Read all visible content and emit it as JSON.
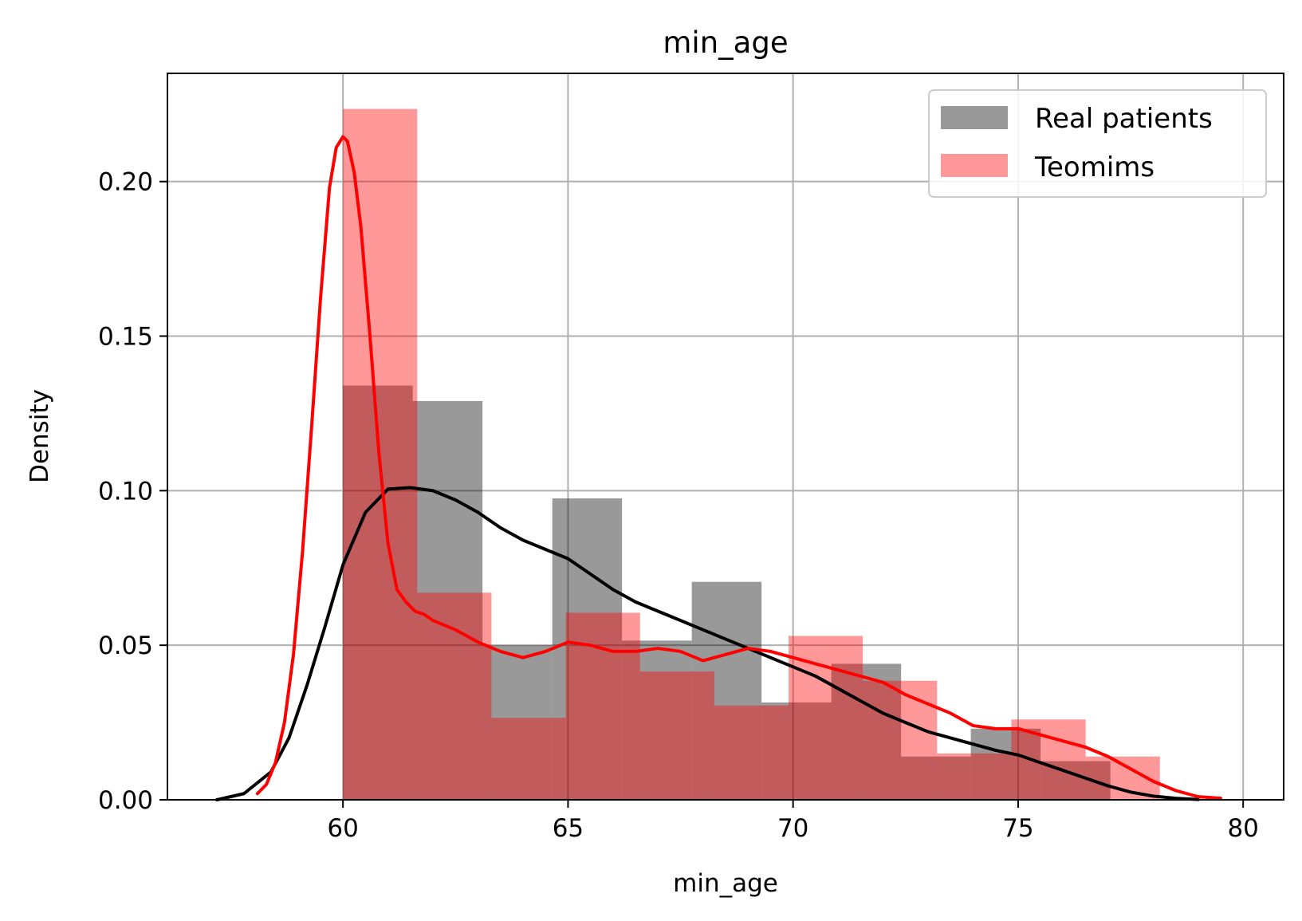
{
  "chart_data": {
    "type": "histogram",
    "title": "min_age",
    "xlabel": "min_age",
    "ylabel": "Density",
    "xlim": [
      56.1,
      80.9
    ],
    "ylim": [
      0,
      0.235
    ],
    "xticks": [
      60,
      65,
      70,
      75,
      80
    ],
    "yticks": [
      0.0,
      0.05,
      0.1,
      0.15,
      0.2
    ],
    "xtick_labels": [
      "60",
      "65",
      "70",
      "75",
      "80"
    ],
    "ytick_labels": [
      "0.00",
      "0.05",
      "0.10",
      "0.15",
      "0.20"
    ],
    "grid": true,
    "legend_position": "top-right",
    "series": [
      {
        "name": "Real patients",
        "color": "#000000",
        "bar_opacity": 0.4,
        "bins": [
          {
            "x0": 60.0,
            "x1": 61.55,
            "density": 0.134
          },
          {
            "x0": 61.55,
            "x1": 63.1,
            "density": 0.129
          },
          {
            "x0": 63.1,
            "x1": 64.65,
            "density": 0.05
          },
          {
            "x0": 64.65,
            "x1": 66.2,
            "density": 0.0975
          },
          {
            "x0": 66.2,
            "x1": 67.75,
            "density": 0.0515
          },
          {
            "x0": 67.75,
            "x1": 69.3,
            "density": 0.0705
          },
          {
            "x0": 69.3,
            "x1": 70.85,
            "density": 0.0315
          },
          {
            "x0": 70.85,
            "x1": 72.4,
            "density": 0.044
          },
          {
            "x0": 72.4,
            "x1": 73.95,
            "density": 0.014
          },
          {
            "x0": 73.95,
            "x1": 75.5,
            "density": 0.023
          },
          {
            "x0": 75.5,
            "x1": 77.05,
            "density": 0.0125
          }
        ],
        "kde": {
          "x": [
            57.2,
            57.8,
            58.4,
            58.8,
            59.2,
            59.6,
            60.0,
            60.5,
            61.0,
            61.5,
            62.0,
            62.5,
            63.0,
            63.5,
            64.0,
            64.5,
            65.0,
            65.5,
            66.0,
            66.5,
            67.0,
            67.5,
            68.0,
            68.5,
            69.0,
            69.5,
            70.0,
            70.5,
            71.0,
            71.5,
            72.0,
            72.5,
            73.0,
            73.5,
            74.0,
            74.5,
            75.0,
            75.5,
            76.0,
            76.5,
            77.0,
            77.5,
            78.0,
            78.5,
            79.0
          ],
          "y": [
            0.0,
            0.002,
            0.009,
            0.02,
            0.037,
            0.056,
            0.076,
            0.093,
            0.1005,
            0.101,
            0.1,
            0.097,
            0.093,
            0.088,
            0.084,
            0.081,
            0.078,
            0.073,
            0.068,
            0.064,
            0.061,
            0.058,
            0.055,
            0.052,
            0.049,
            0.046,
            0.043,
            0.04,
            0.036,
            0.032,
            0.028,
            0.025,
            0.022,
            0.02,
            0.018,
            0.016,
            0.0145,
            0.012,
            0.0095,
            0.007,
            0.0045,
            0.0025,
            0.0012,
            0.0005,
            0.0001
          ]
        }
      },
      {
        "name": "Teomims",
        "color": "#ff0000",
        "bar_opacity": 0.4,
        "bins": [
          {
            "x0": 60.0,
            "x1": 61.65,
            "density": 0.2235
          },
          {
            "x0": 61.65,
            "x1": 63.3,
            "density": 0.067
          },
          {
            "x0": 63.3,
            "x1": 64.95,
            "density": 0.0265
          },
          {
            "x0": 64.95,
            "x1": 66.6,
            "density": 0.0605
          },
          {
            "x0": 66.6,
            "x1": 68.25,
            "density": 0.0415
          },
          {
            "x0": 68.25,
            "x1": 69.9,
            "density": 0.0305
          },
          {
            "x0": 69.9,
            "x1": 71.55,
            "density": 0.053
          },
          {
            "x0": 71.55,
            "x1": 73.2,
            "density": 0.0385
          },
          {
            "x0": 73.2,
            "x1": 74.85,
            "density": 0.015
          },
          {
            "x0": 74.85,
            "x1": 76.5,
            "density": 0.026
          },
          {
            "x0": 76.5,
            "x1": 78.15,
            "density": 0.014
          }
        ],
        "kde": {
          "x": [
            58.1,
            58.3,
            58.5,
            58.7,
            58.9,
            59.1,
            59.3,
            59.5,
            59.7,
            59.85,
            60.0,
            60.1,
            60.25,
            60.4,
            60.6,
            60.8,
            61.0,
            61.2,
            61.4,
            61.6,
            61.8,
            62.0,
            62.5,
            63.0,
            63.5,
            64.0,
            64.5,
            65.0,
            65.5,
            66.0,
            66.5,
            67.0,
            67.5,
            68.0,
            68.5,
            69.0,
            69.5,
            70.0,
            70.5,
            71.0,
            71.5,
            72.0,
            72.5,
            73.0,
            73.5,
            74.0,
            74.5,
            75.0,
            75.5,
            76.0,
            76.5,
            77.0,
            77.5,
            78.0,
            78.5,
            79.0,
            79.5
          ],
          "y": [
            0.002,
            0.005,
            0.012,
            0.025,
            0.047,
            0.08,
            0.12,
            0.162,
            0.198,
            0.211,
            0.2145,
            0.213,
            0.203,
            0.185,
            0.15,
            0.112,
            0.083,
            0.068,
            0.064,
            0.061,
            0.06,
            0.058,
            0.055,
            0.051,
            0.048,
            0.046,
            0.048,
            0.051,
            0.05,
            0.048,
            0.048,
            0.049,
            0.048,
            0.045,
            0.047,
            0.049,
            0.048,
            0.046,
            0.044,
            0.042,
            0.04,
            0.038,
            0.034,
            0.031,
            0.028,
            0.024,
            0.023,
            0.023,
            0.021,
            0.019,
            0.017,
            0.014,
            0.01,
            0.006,
            0.003,
            0.001,
            0.0005
          ]
        }
      }
    ]
  }
}
